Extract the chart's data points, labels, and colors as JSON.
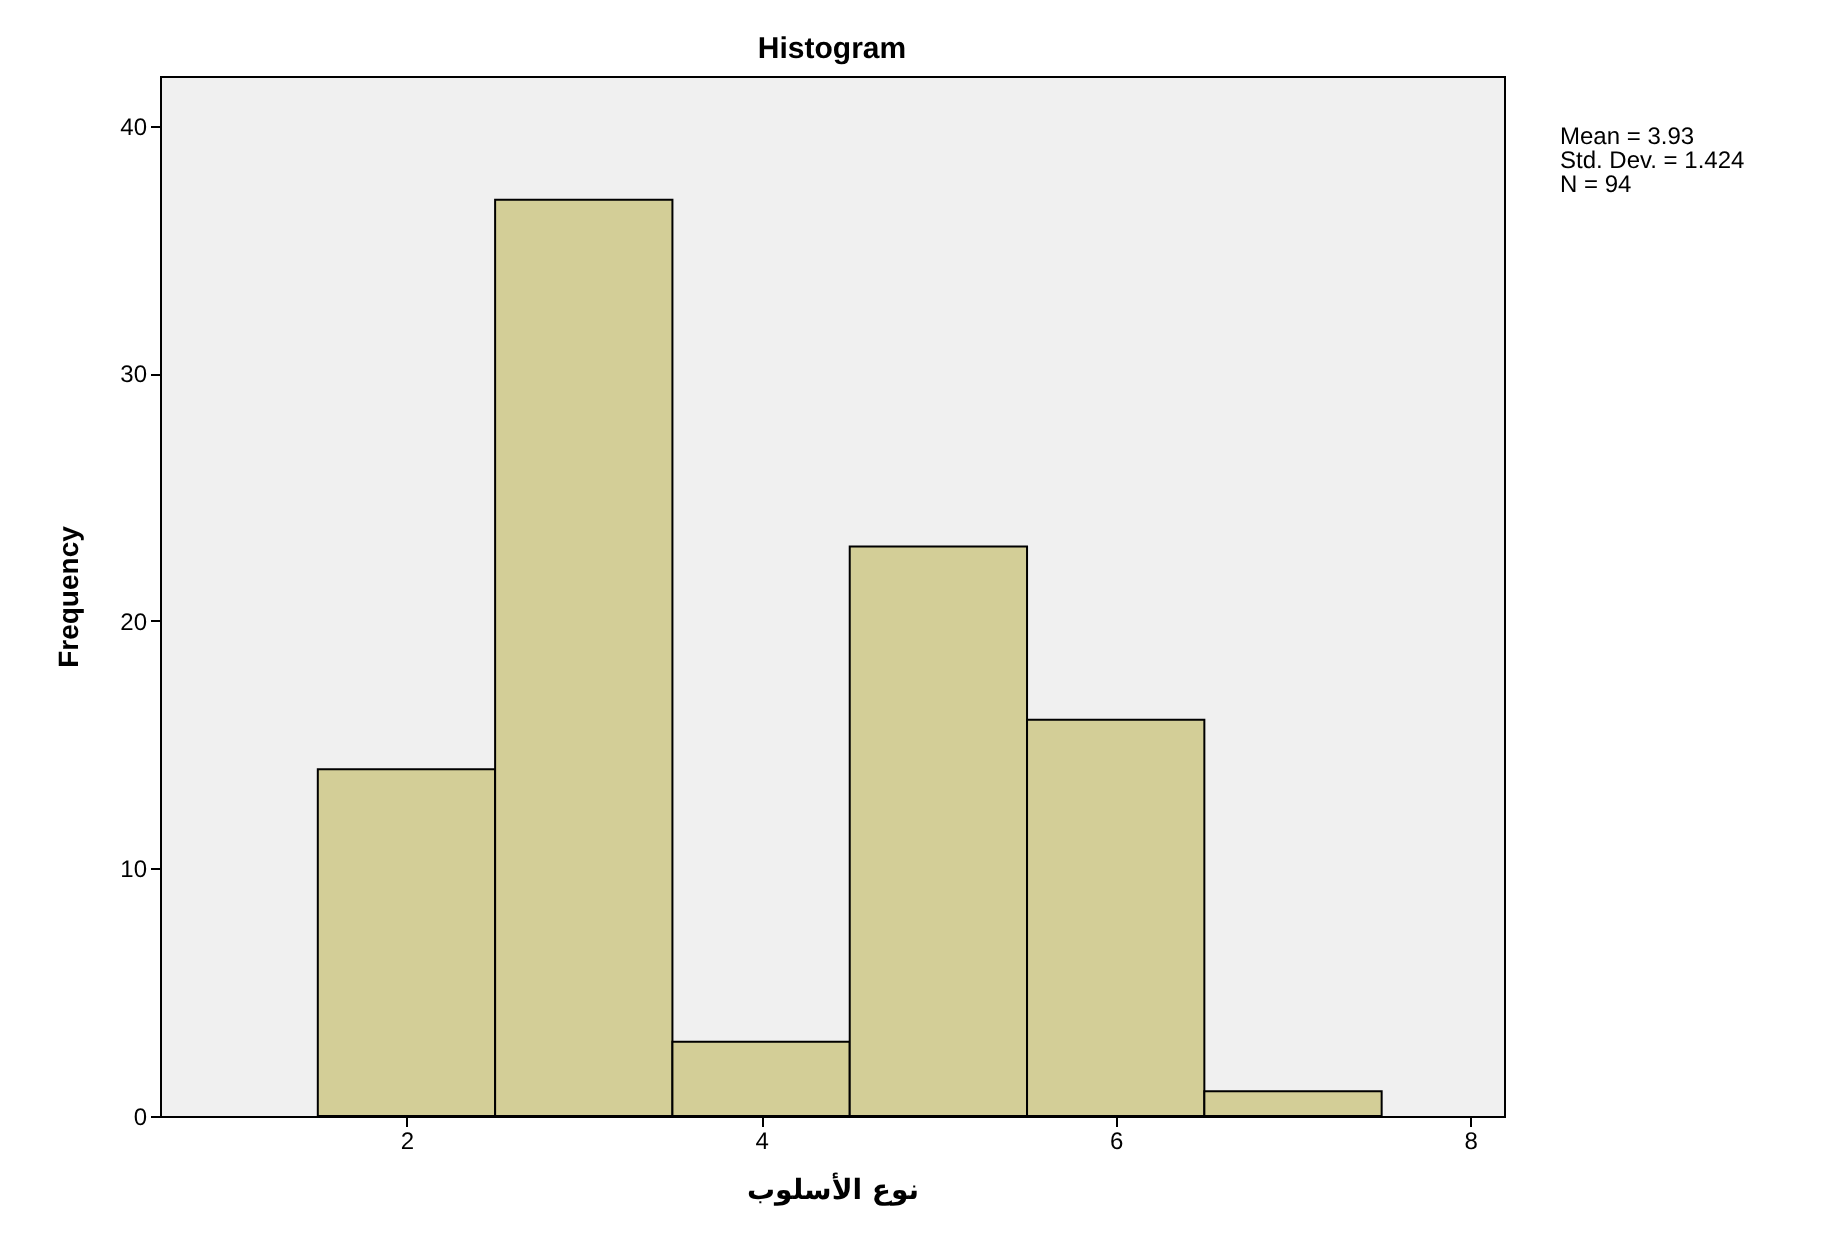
{
  "chart_data": {
    "type": "histogram",
    "title": "Histogram",
    "xlabel": "نوع الأسلوب",
    "ylabel": "Frequency",
    "bins": [
      1.5,
      2.5,
      3.5,
      4.5,
      5.5,
      6.5,
      7.5
    ],
    "values": [
      14,
      37,
      3,
      23,
      16,
      1
    ],
    "color": "#d3ce97",
    "xlim": [
      0.61,
      8.19
    ],
    "xticks": [
      2,
      4,
      6,
      8
    ],
    "ylim": [
      0,
      42
    ],
    "yticks": [
      0,
      10,
      20,
      30,
      40
    ],
    "grid": false,
    "annotations": [
      "Mean = 3.93",
      "Std. Dev. = 1.424",
      "N = 94"
    ]
  }
}
